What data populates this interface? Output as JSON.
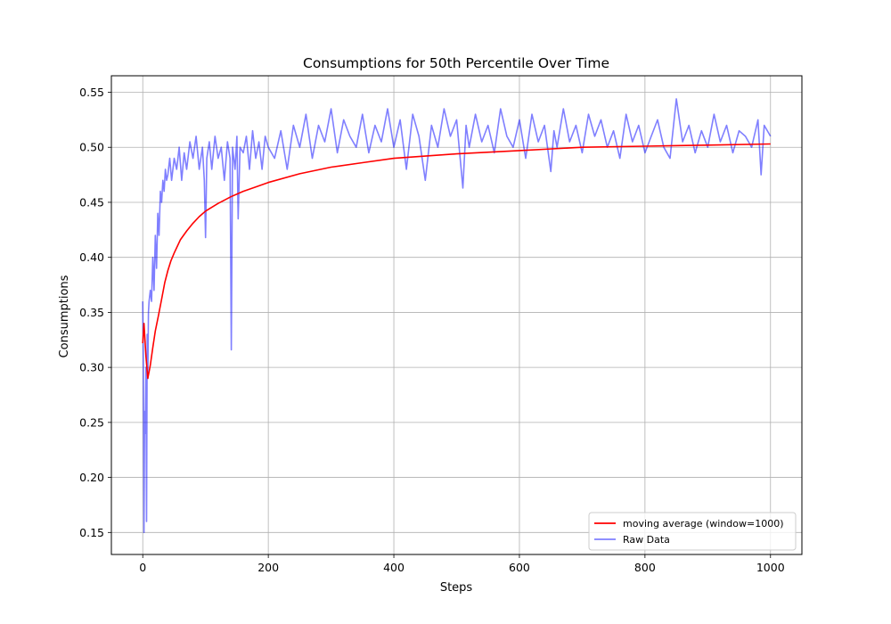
{
  "chart_data": {
    "type": "line",
    "title": "Consumptions for 50th Percentile Over Time",
    "xlabel": "Steps",
    "ylabel": "Consumptions",
    "xlim": [
      -50,
      1050
    ],
    "ylim": [
      0.13,
      0.565
    ],
    "xticks": [
      0,
      200,
      400,
      600,
      800,
      1000
    ],
    "xtick_labels": [
      "0",
      "200",
      "400",
      "600",
      "800",
      "1000"
    ],
    "yticks": [
      0.15,
      0.2,
      0.25,
      0.3,
      0.35,
      0.4,
      0.45,
      0.5,
      0.55
    ],
    "ytick_labels": [
      "0.15",
      "0.20",
      "0.25",
      "0.30",
      "0.35",
      "0.40",
      "0.45",
      "0.50",
      "0.55"
    ],
    "grid": true,
    "legend_position": "lower-right",
    "series": [
      {
        "name": "moving average (window=1000)",
        "color": "#ff0000",
        "opacity": 1,
        "x": [
          0,
          2,
          5,
          8,
          12,
          16,
          20,
          25,
          30,
          35,
          40,
          45,
          50,
          60,
          70,
          80,
          90,
          100,
          120,
          140,
          160,
          180,
          200,
          250,
          300,
          350,
          400,
          450,
          500,
          600,
          700,
          800,
          900,
          1000
        ],
        "values": [
          0.322,
          0.34,
          0.31,
          0.29,
          0.302,
          0.318,
          0.333,
          0.347,
          0.362,
          0.377,
          0.388,
          0.397,
          0.404,
          0.416,
          0.424,
          0.431,
          0.437,
          0.442,
          0.449,
          0.455,
          0.46,
          0.464,
          0.468,
          0.476,
          0.482,
          0.486,
          0.49,
          0.492,
          0.494,
          0.497,
          0.5,
          0.501,
          0.502,
          0.503
        ]
      },
      {
        "name": "Raw Data",
        "color": "#0000ff",
        "opacity": 0.5,
        "x": [
          0,
          1,
          2,
          3,
          4,
          5,
          6,
          7,
          8,
          9,
          10,
          12,
          14,
          16,
          18,
          20,
          22,
          24,
          26,
          28,
          30,
          32,
          34,
          36,
          38,
          40,
          43,
          46,
          50,
          54,
          58,
          62,
          66,
          70,
          75,
          80,
          85,
          90,
          95,
          98,
          100,
          102,
          106,
          110,
          115,
          120,
          125,
          130,
          135,
          139,
          141,
          143,
          147,
          150,
          152,
          155,
          160,
          165,
          170,
          175,
          180,
          185,
          190,
          195,
          200,
          210,
          220,
          230,
          240,
          250,
          260,
          270,
          280,
          290,
          300,
          310,
          320,
          330,
          340,
          350,
          360,
          370,
          380,
          390,
          400,
          410,
          420,
          430,
          440,
          450,
          460,
          470,
          480,
          490,
          500,
          510,
          515,
          520,
          530,
          540,
          550,
          560,
          570,
          580,
          590,
          600,
          610,
          620,
          630,
          640,
          650,
          655,
          660,
          670,
          680,
          690,
          700,
          710,
          720,
          730,
          740,
          750,
          760,
          770,
          780,
          790,
          800,
          810,
          820,
          830,
          840,
          850,
          860,
          870,
          880,
          890,
          900,
          910,
          920,
          930,
          940,
          950,
          960,
          970,
          980,
          985,
          990,
          1000
        ],
        "values": [
          0.36,
          0.3,
          0.15,
          0.26,
          0.24,
          0.3,
          0.16,
          0.33,
          0.29,
          0.35,
          0.36,
          0.37,
          0.36,
          0.4,
          0.37,
          0.42,
          0.39,
          0.44,
          0.42,
          0.46,
          0.45,
          0.47,
          0.46,
          0.48,
          0.47,
          0.475,
          0.49,
          0.47,
          0.49,
          0.48,
          0.5,
          0.47,
          0.495,
          0.48,
          0.505,
          0.49,
          0.51,
          0.48,
          0.5,
          0.47,
          0.418,
          0.49,
          0.505,
          0.48,
          0.51,
          0.49,
          0.5,
          0.47,
          0.505,
          0.49,
          0.316,
          0.5,
          0.48,
          0.51,
          0.435,
          0.5,
          0.495,
          0.51,
          0.48,
          0.515,
          0.49,
          0.505,
          0.48,
          0.51,
          0.5,
          0.49,
          0.515,
          0.48,
          0.52,
          0.5,
          0.53,
          0.49,
          0.52,
          0.505,
          0.535,
          0.495,
          0.525,
          0.51,
          0.5,
          0.53,
          0.495,
          0.52,
          0.505,
          0.535,
          0.5,
          0.525,
          0.48,
          0.53,
          0.51,
          0.47,
          0.52,
          0.5,
          0.535,
          0.51,
          0.525,
          0.463,
          0.52,
          0.5,
          0.53,
          0.505,
          0.52,
          0.495,
          0.535,
          0.51,
          0.5,
          0.525,
          0.49,
          0.53,
          0.505,
          0.52,
          0.478,
          0.515,
          0.5,
          0.535,
          0.505,
          0.52,
          0.495,
          0.53,
          0.51,
          0.525,
          0.5,
          0.515,
          0.49,
          0.53,
          0.505,
          0.52,
          0.495,
          0.51,
          0.525,
          0.5,
          0.49,
          0.544,
          0.505,
          0.52,
          0.495,
          0.515,
          0.5,
          0.53,
          0.505,
          0.52,
          0.495,
          0.515,
          0.51,
          0.5,
          0.525,
          0.475,
          0.52,
          0.51
        ]
      }
    ]
  }
}
